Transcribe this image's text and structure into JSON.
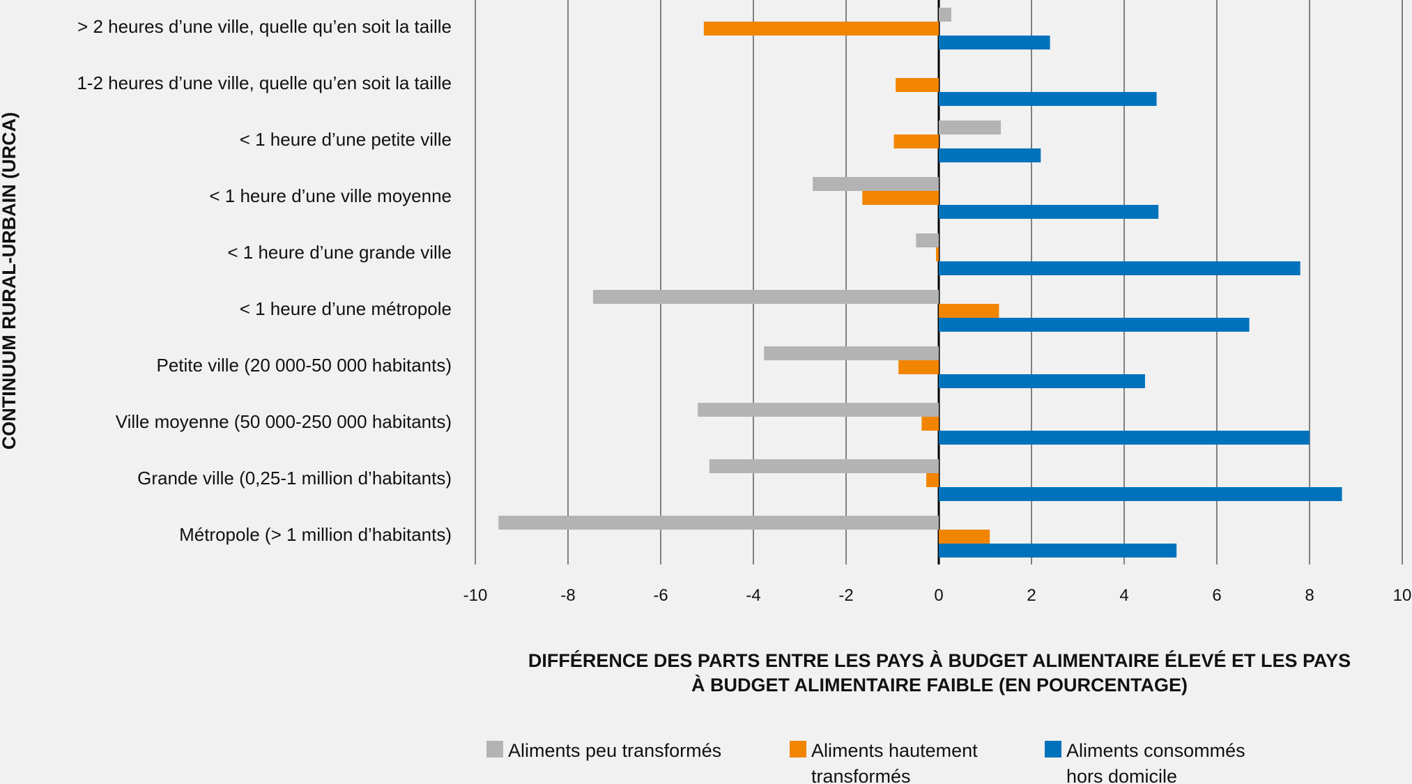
{
  "chart_data": {
    "type": "bar",
    "orientation": "horizontal",
    "ylabel": "CONTINUUM RURAL-URBAIN (URCA)",
    "xlabel_lines": [
      "DIFFÉRENCE DES PARTS ENTRE LES PAYS À BUDGET ALIMENTAIRE ÉLEVÉ ET LES PAYS",
      "À BUDGET ALIMENTAIRE FAIBLE (EN POURCENTAGE)"
    ],
    "xlim": [
      -10,
      10
    ],
    "xticks": [
      "-10",
      "-8",
      "-6",
      "-4",
      "-2",
      "0",
      "2",
      "4",
      "6",
      "8",
      "10"
    ],
    "grid": "vertical",
    "legend_position": "bottom",
    "categories": [
      "> 2 heures d’une ville, quelle qu’en soit la taille",
      "1-2 heures d’une ville, quelle qu’en soit la taille",
      "< 1 heure d’une petite ville",
      "< 1 heure d’une ville moyenne",
      "< 1 heure d’une grande ville",
      "< 1 heure d’une métropole",
      "Petite ville (20 000-50 000 habitants)",
      "Ville moyenne (50 000-250 000 habitants)",
      "Grande ville (0,25-1 million d’habitants)",
      "Métropole (> 1 million d’habitants)"
    ],
    "series": [
      {
        "name": "Aliments peu transformés",
        "legend_lines": [
          "Aliments peu transformés"
        ],
        "color": "#b3b3b3",
        "values": [
          0.27,
          0,
          1.34,
          -2.72,
          -0.49,
          -7.46,
          -3.77,
          -5.2,
          -4.95,
          -9.5
        ]
      },
      {
        "name": "Aliments hautement transformés",
        "legend_lines": [
          "Aliments hautement",
          "transformés"
        ],
        "color": "#f28500",
        "values": [
          -5.07,
          -0.93,
          -0.97,
          -1.65,
          -0.06,
          1.3,
          -0.87,
          -0.37,
          -0.27,
          1.1
        ]
      },
      {
        "name": "Aliments consommés hors domicile",
        "legend_lines": [
          "Aliments consommés",
          "hors domicile"
        ],
        "color": "#0072bc",
        "values": [
          2.4,
          4.7,
          2.2,
          4.74,
          7.8,
          6.7,
          4.45,
          8.0,
          8.7,
          5.13
        ]
      }
    ]
  }
}
